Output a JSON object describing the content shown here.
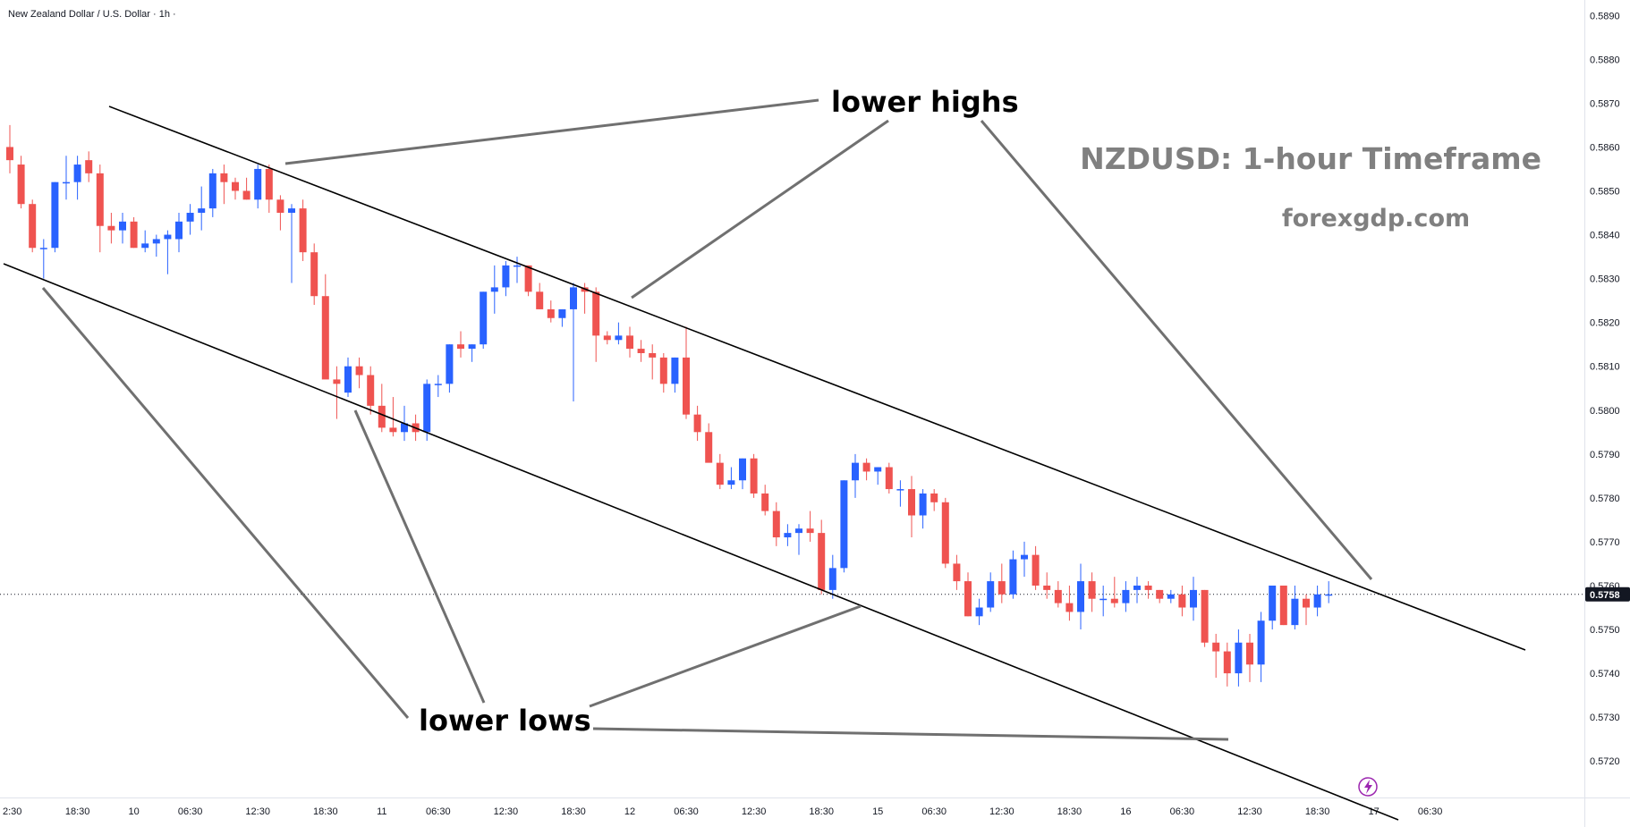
{
  "header": {
    "symbol_description": "New Zealand Dollar / U.S. Dollar · 1h ·"
  },
  "watermark": {
    "title": "NZDUSD: 1-hour Timeframe",
    "site": "forexgdp.com"
  },
  "annotations": {
    "lower_highs": "lower highs",
    "lower_lows": "lower lows"
  },
  "colors": {
    "up": "#2962ff",
    "down": "#ef5350",
    "trendline": "#000000",
    "pointer": "#707070",
    "last_price_bg": "#131722",
    "alert_icon": "#9c27b0"
  },
  "last_price_label": "0.5758",
  "alert_icon": "lightning-bolt-icon",
  "chart_data": {
    "type": "candlestick",
    "title": "",
    "xlabel": "",
    "ylabel": "",
    "ylim": [
      0.57125,
      0.58925
    ],
    "y_ticks": [
      "0.5720",
      "0.5730",
      "0.5740",
      "0.5750",
      "0.5760",
      "0.5770",
      "0.5780",
      "0.5790",
      "0.5800",
      "0.5810",
      "0.5820",
      "0.5830",
      "0.5840",
      "0.5850",
      "0.5860",
      "0.5870",
      "0.5880",
      "0.5890"
    ],
    "x_ticks": [
      {
        "label": "2:30",
        "bar": 0
      },
      {
        "label": "18:30",
        "bar": 6
      },
      {
        "label": "10",
        "bar": 11
      },
      {
        "label": "06:30",
        "bar": 16
      },
      {
        "label": "12:30",
        "bar": 22
      },
      {
        "label": "18:30",
        "bar": 28
      },
      {
        "label": "11",
        "bar": 33
      },
      {
        "label": "06:30",
        "bar": 38
      },
      {
        "label": "12:30",
        "bar": 44
      },
      {
        "label": "18:30",
        "bar": 50
      },
      {
        "label": "12",
        "bar": 55
      },
      {
        "label": "06:30",
        "bar": 60
      },
      {
        "label": "12:30",
        "bar": 66
      },
      {
        "label": "18:30",
        "bar": 72
      },
      {
        "label": "15",
        "bar": 77
      },
      {
        "label": "06:30",
        "bar": 82
      },
      {
        "label": "12:30",
        "bar": 88
      },
      {
        "label": "18:30",
        "bar": 94
      },
      {
        "label": "16",
        "bar": 99
      },
      {
        "label": "06:30",
        "bar": 104
      },
      {
        "label": "12:30",
        "bar": 110
      },
      {
        "label": "18:30",
        "bar": 116
      },
      {
        "label": "17",
        "bar": 121
      },
      {
        "label": "06:30",
        "bar": 126
      }
    ],
    "last_price": 0.5758,
    "candles": [
      [
        0.586,
        0.5865,
        0.5854,
        0.5857
      ],
      [
        0.5856,
        0.5858,
        0.5846,
        0.5847
      ],
      [
        0.5847,
        0.5848,
        0.5836,
        0.5837
      ],
      [
        0.5837,
        0.5839,
        0.583,
        0.5837
      ],
      [
        0.5837,
        0.5852,
        0.5836,
        0.5852
      ],
      [
        0.5852,
        0.5858,
        0.5848,
        0.5852
      ],
      [
        0.5852,
        0.5858,
        0.5848,
        0.5856
      ],
      [
        0.5857,
        0.5859,
        0.5852,
        0.5854
      ],
      [
        0.5854,
        0.5856,
        0.5836,
        0.5842
      ],
      [
        0.5842,
        0.5845,
        0.5838,
        0.5841
      ],
      [
        0.5841,
        0.5845,
        0.5838,
        0.5843
      ],
      [
        0.5843,
        0.5844,
        0.5837,
        0.5837
      ],
      [
        0.5837,
        0.5841,
        0.5836,
        0.5838
      ],
      [
        0.5838,
        0.584,
        0.5835,
        0.5839
      ],
      [
        0.5839,
        0.5841,
        0.5831,
        0.584
      ],
      [
        0.5839,
        0.5845,
        0.5836,
        0.5843
      ],
      [
        0.5843,
        0.5847,
        0.584,
        0.5845
      ],
      [
        0.5845,
        0.5851,
        0.5841,
        0.5846
      ],
      [
        0.5846,
        0.5855,
        0.5844,
        0.5854
      ],
      [
        0.5854,
        0.5856,
        0.5847,
        0.5852
      ],
      [
        0.5852,
        0.5853,
        0.5848,
        0.585
      ],
      [
        0.585,
        0.5853,
        0.5848,
        0.5848
      ],
      [
        0.5848,
        0.5856,
        0.5846,
        0.5855
      ],
      [
        0.5855,
        0.5856,
        0.5845,
        0.5848
      ],
      [
        0.5848,
        0.5849,
        0.5841,
        0.5845
      ],
      [
        0.5845,
        0.5847,
        0.5829,
        0.5846
      ],
      [
        0.5846,
        0.5848,
        0.5834,
        0.5836
      ],
      [
        0.5836,
        0.5838,
        0.5824,
        0.5826
      ],
      [
        0.5826,
        0.5831,
        0.5808,
        0.5807
      ],
      [
        0.5807,
        0.581,
        0.5798,
        0.5806
      ],
      [
        0.5804,
        0.5812,
        0.5803,
        0.581
      ],
      [
        0.581,
        0.5812,
        0.5805,
        0.5808
      ],
      [
        0.5808,
        0.581,
        0.5799,
        0.5801
      ],
      [
        0.5801,
        0.5806,
        0.5795,
        0.5796
      ],
      [
        0.5796,
        0.5803,
        0.5794,
        0.5795
      ],
      [
        0.5795,
        0.5801,
        0.5793,
        0.5797
      ],
      [
        0.5797,
        0.5799,
        0.5793,
        0.5795
      ],
      [
        0.5795,
        0.5807,
        0.5793,
        0.5806
      ],
      [
        0.5806,
        0.5808,
        0.5803,
        0.5806
      ],
      [
        0.5806,
        0.5815,
        0.5804,
        0.5815
      ],
      [
        0.5815,
        0.5818,
        0.5812,
        0.5814
      ],
      [
        0.5814,
        0.5815,
        0.5811,
        0.5815
      ],
      [
        0.5815,
        0.5827,
        0.5814,
        0.5827
      ],
      [
        0.5827,
        0.5833,
        0.5822,
        0.5828
      ],
      [
        0.5828,
        0.5834,
        0.5826,
        0.5833
      ],
      [
        0.5833,
        0.5835,
        0.5829,
        0.5833
      ],
      [
        0.5833,
        0.5833,
        0.5826,
        0.5827
      ],
      [
        0.5827,
        0.5829,
        0.5823,
        0.5823
      ],
      [
        0.5823,
        0.5825,
        0.582,
        0.5821
      ],
      [
        0.5821,
        0.5823,
        0.5819,
        0.5823
      ],
      [
        0.5823,
        0.5829,
        0.5802,
        0.5828
      ],
      [
        0.5828,
        0.5829,
        0.5822,
        0.5827
      ],
      [
        0.5827,
        0.5828,
        0.5811,
        0.5817
      ],
      [
        0.5817,
        0.5818,
        0.5815,
        0.5816
      ],
      [
        0.5816,
        0.582,
        0.5815,
        0.5817
      ],
      [
        0.5817,
        0.5819,
        0.5812,
        0.5814
      ],
      [
        0.5814,
        0.5816,
        0.5811,
        0.5813
      ],
      [
        0.5813,
        0.5815,
        0.5807,
        0.5812
      ],
      [
        0.5812,
        0.5813,
        0.5804,
        0.5806
      ],
      [
        0.5806,
        0.5812,
        0.5804,
        0.5812
      ],
      [
        0.5812,
        0.5819,
        0.5798,
        0.5799
      ],
      [
        0.5799,
        0.5801,
        0.5793,
        0.5795
      ],
      [
        0.5795,
        0.5797,
        0.5789,
        0.5788
      ],
      [
        0.5788,
        0.579,
        0.5782,
        0.5783
      ],
      [
        0.5783,
        0.5787,
        0.5782,
        0.5784
      ],
      [
        0.5784,
        0.5789,
        0.5782,
        0.5789
      ],
      [
        0.5789,
        0.579,
        0.578,
        0.5781
      ],
      [
        0.5781,
        0.5783,
        0.5776,
        0.5777
      ],
      [
        0.5777,
        0.5779,
        0.5769,
        0.5771
      ],
      [
        0.5771,
        0.5774,
        0.5769,
        0.5772
      ],
      [
        0.5772,
        0.5774,
        0.5767,
        0.5773
      ],
      [
        0.5773,
        0.5777,
        0.577,
        0.5772
      ],
      [
        0.5772,
        0.5775,
        0.5758,
        0.5759
      ],
      [
        0.5759,
        0.5767,
        0.5757,
        0.5764
      ],
      [
        0.5764,
        0.5784,
        0.5763,
        0.5784
      ],
      [
        0.5784,
        0.579,
        0.578,
        0.5788
      ],
      [
        0.5788,
        0.5789,
        0.5784,
        0.5786
      ],
      [
        0.5786,
        0.5787,
        0.5783,
        0.5787
      ],
      [
        0.5787,
        0.5788,
        0.5781,
        0.5782
      ],
      [
        0.5782,
        0.5784,
        0.5778,
        0.5782
      ],
      [
        0.5782,
        0.5785,
        0.5771,
        0.5776
      ],
      [
        0.5776,
        0.5782,
        0.5773,
        0.5781
      ],
      [
        0.5781,
        0.5782,
        0.5777,
        0.5779
      ],
      [
        0.5779,
        0.578,
        0.5764,
        0.5765
      ],
      [
        0.5765,
        0.5767,
        0.5759,
        0.5761
      ],
      [
        0.5761,
        0.5763,
        0.5753,
        0.5753
      ],
      [
        0.5753,
        0.5757,
        0.5751,
        0.5755
      ],
      [
        0.5755,
        0.5763,
        0.5754,
        0.5761
      ],
      [
        0.5761,
        0.5765,
        0.5756,
        0.5758
      ],
      [
        0.5758,
        0.5768,
        0.5757,
        0.5766
      ],
      [
        0.5766,
        0.577,
        0.5762,
        0.5767
      ],
      [
        0.5767,
        0.5769,
        0.5759,
        0.576
      ],
      [
        0.576,
        0.5763,
        0.5757,
        0.5759
      ],
      [
        0.5759,
        0.5761,
        0.5755,
        0.5756
      ],
      [
        0.5756,
        0.576,
        0.5752,
        0.5754
      ],
      [
        0.5754,
        0.5765,
        0.575,
        0.5761
      ],
      [
        0.5761,
        0.5763,
        0.5754,
        0.5757
      ],
      [
        0.5757,
        0.576,
        0.5753,
        0.5757
      ],
      [
        0.5757,
        0.5762,
        0.5755,
        0.5756
      ],
      [
        0.5756,
        0.5761,
        0.5754,
        0.5759
      ],
      [
        0.5759,
        0.5762,
        0.5756,
        0.576
      ],
      [
        0.576,
        0.5761,
        0.5757,
        0.5759
      ],
      [
        0.5759,
        0.5759,
        0.5756,
        0.5757
      ],
      [
        0.5757,
        0.5759,
        0.5756,
        0.5758
      ],
      [
        0.5758,
        0.576,
        0.5753,
        0.5755
      ],
      [
        0.5755,
        0.5762,
        0.5752,
        0.5759
      ],
      [
        0.5759,
        0.5759,
        0.5746,
        0.5747
      ],
      [
        0.5747,
        0.5749,
        0.5739,
        0.5745
      ],
      [
        0.5745,
        0.5747,
        0.5737,
        0.574
      ],
      [
        0.574,
        0.575,
        0.5737,
        0.5747
      ],
      [
        0.5747,
        0.5749,
        0.5738,
        0.5742
      ],
      [
        0.5742,
        0.5754,
        0.5738,
        0.5752
      ],
      [
        0.5752,
        0.576,
        0.575,
        0.576
      ],
      [
        0.576,
        0.576,
        0.5751,
        0.5751
      ],
      [
        0.5751,
        0.576,
        0.575,
        0.5757
      ],
      [
        0.5757,
        0.5758,
        0.5751,
        0.5755
      ],
      [
        0.5755,
        0.576,
        0.5753,
        0.5758
      ],
      [
        0.5758,
        0.5761,
        0.5756,
        0.5758
      ]
    ]
  }
}
